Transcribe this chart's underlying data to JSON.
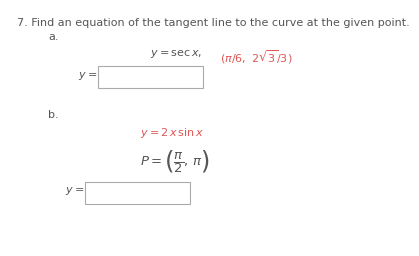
{
  "title": "7. Find an equation of the tangent line to the curve at the given point.",
  "part_a_label": "a.",
  "part_b_label": "b.",
  "bg_color": "#ffffff",
  "text_color": "#555555",
  "red_color": "#e05555",
  "box_color": "#aaaaaa",
  "title_fontsize": 8.0,
  "body_fontsize": 8.0
}
